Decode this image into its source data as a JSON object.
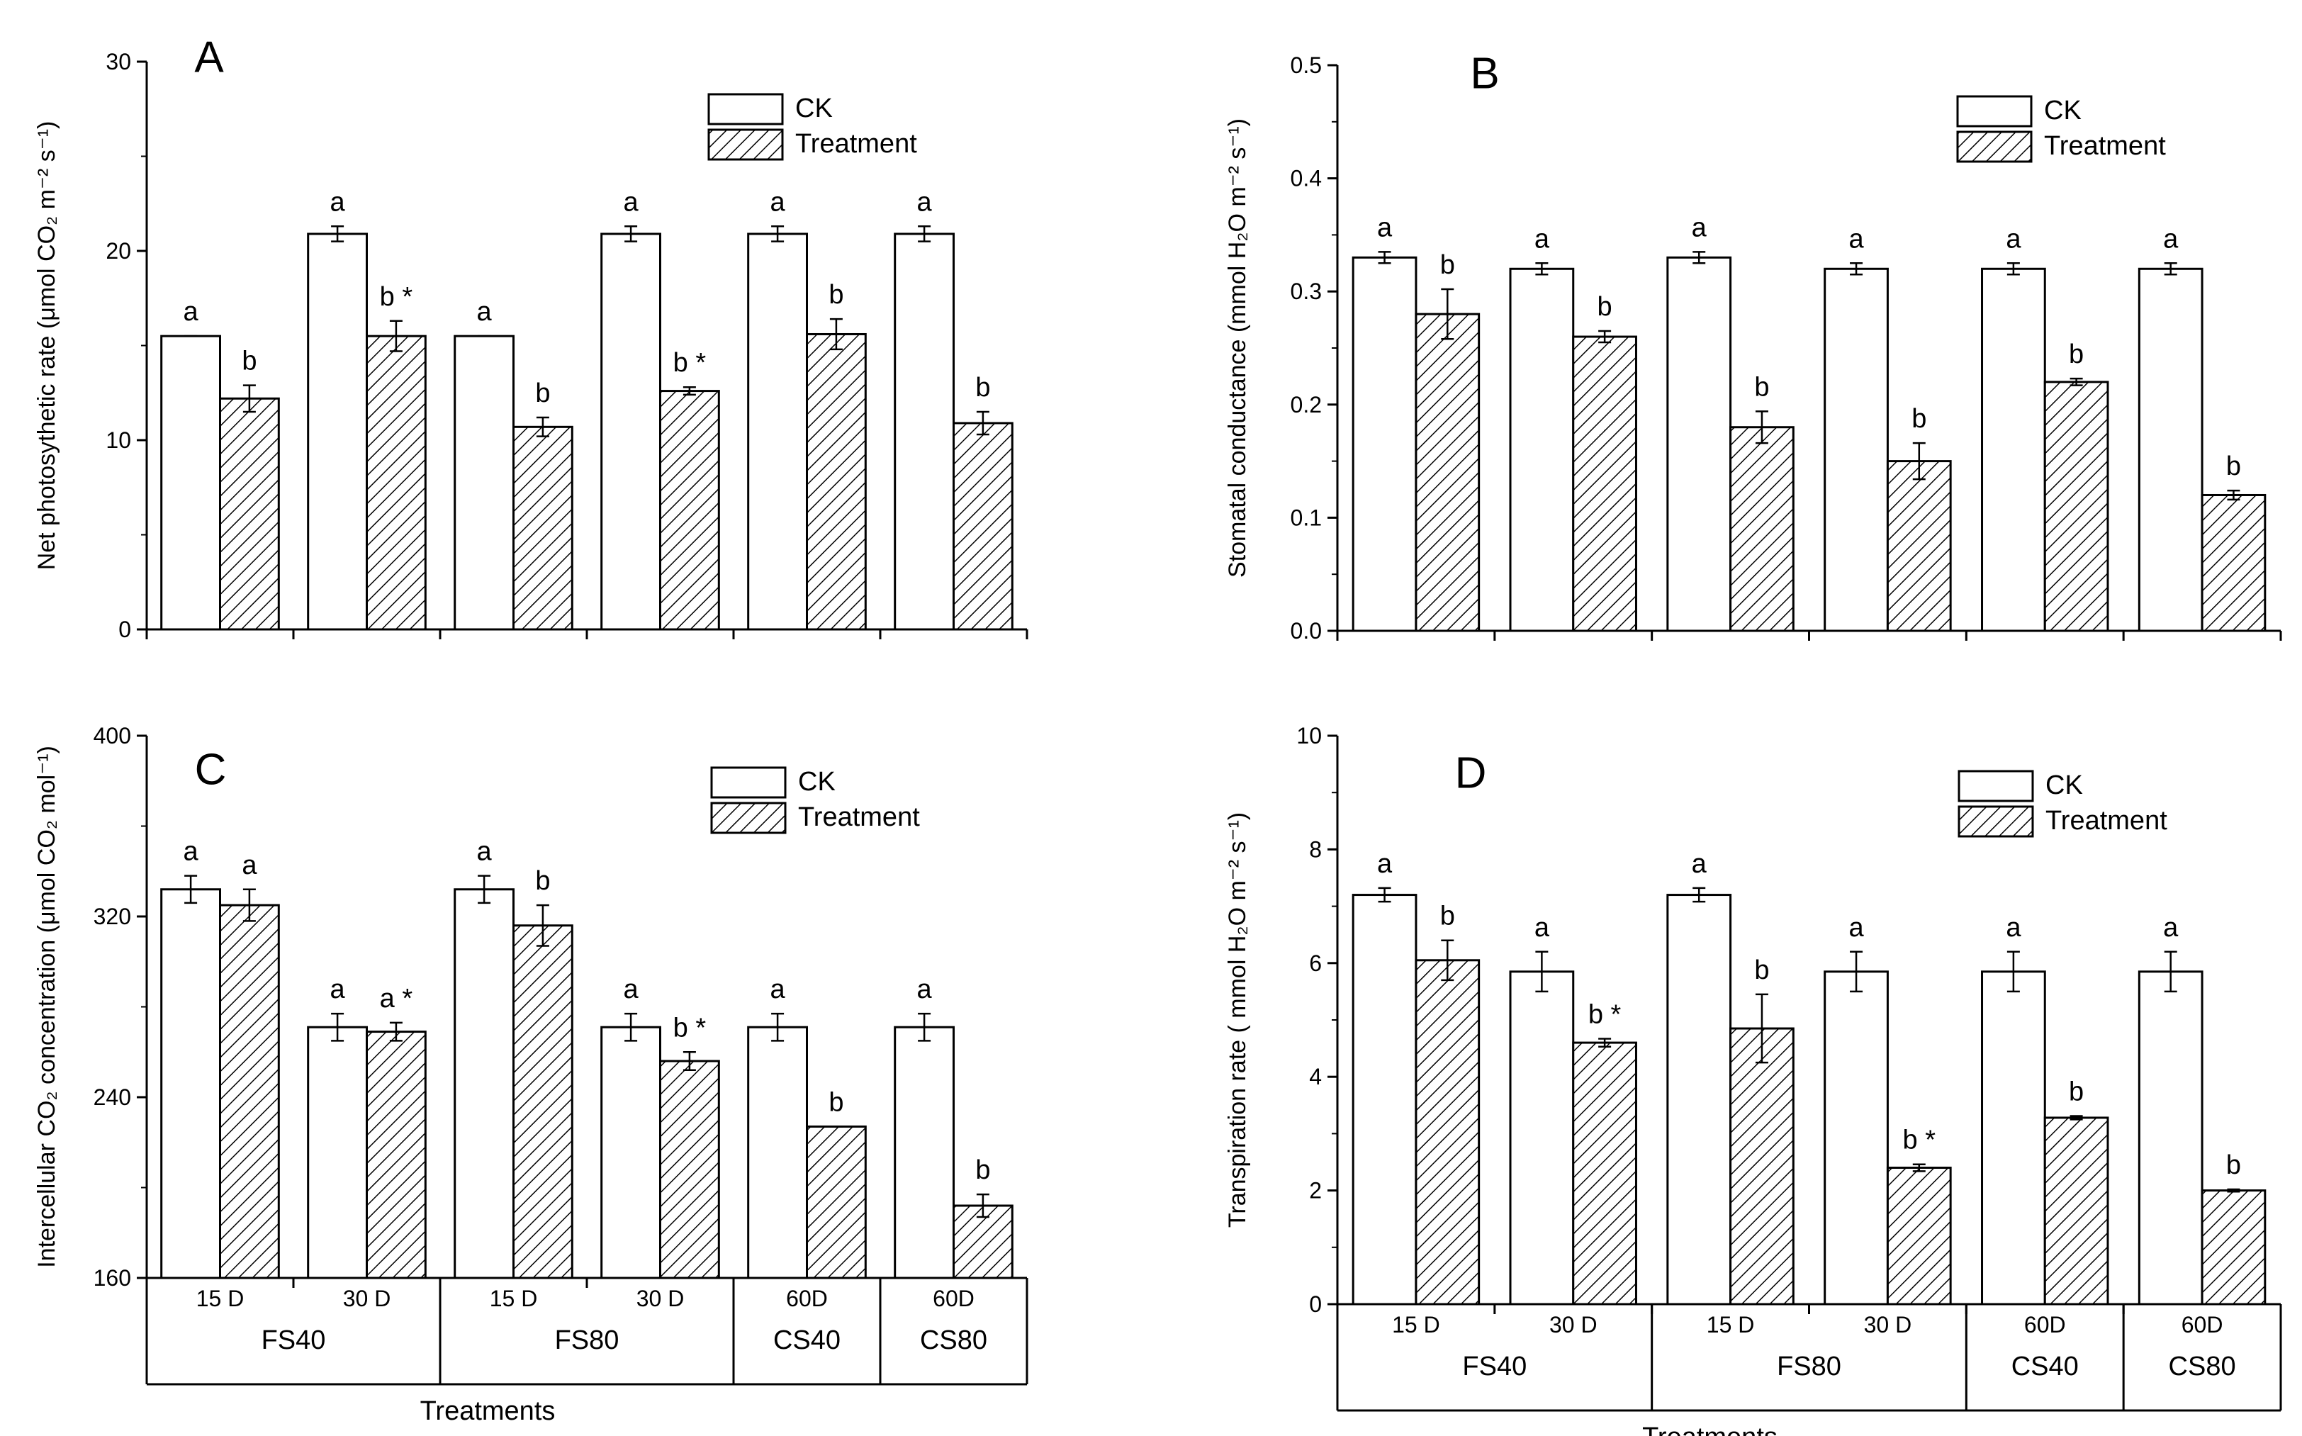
{
  "figure": {
    "x_title": "Treatments",
    "x_sub_labels": [
      "15 D",
      "30 D",
      "15 D",
      "30 D",
      "60D",
      "60D"
    ],
    "x_group_labels": [
      "FS40",
      "FS80",
      "CS40",
      "CS80"
    ],
    "legend": [
      "CK",
      "Treatment"
    ],
    "colors": {
      "ck_fill": "#ffffff",
      "treatment_hatch": "#000000",
      "axis": "#000000"
    }
  },
  "chart_data": [
    {
      "panel": "A",
      "type": "bar",
      "ylabel": "Net photosythetic rate (μmol CO₂ m⁻² s⁻¹)",
      "ylim": [
        0,
        30
      ],
      "yticks": [
        "0",
        "10",
        "20",
        "30"
      ],
      "categories": [
        "15 D",
        "30 D",
        "15 D",
        "30 D",
        "60D",
        "60D"
      ],
      "groups": [
        "FS40",
        "FS80",
        "CS40",
        "CS80"
      ],
      "series": [
        {
          "name": "CK",
          "values": [
            15.5,
            20.9,
            15.5,
            20.9,
            20.9,
            20.9
          ],
          "errors": [
            0,
            0.4,
            0,
            0.4,
            0.4,
            0.4
          ],
          "labels": [
            "a",
            "a",
            "a",
            "a",
            "a",
            "a"
          ]
        },
        {
          "name": "Treatment",
          "values": [
            12.2,
            15.5,
            10.7,
            12.6,
            15.6,
            10.9
          ],
          "errors": [
            0.7,
            0.8,
            0.5,
            0.2,
            0.8,
            0.6
          ],
          "labels": [
            "b",
            "b *",
            "b",
            "b *",
            "b",
            "b"
          ]
        }
      ]
    },
    {
      "panel": "B",
      "type": "bar",
      "ylabel": "Stomatal conductance (mmol H₂O m⁻² s⁻¹)",
      "ylim": [
        0,
        0.5
      ],
      "yticks": [
        "0.0",
        "0.1",
        "0.2",
        "0.3",
        "0.4",
        "0.5"
      ],
      "categories": [
        "15 D",
        "30 D",
        "15 D",
        "30 D",
        "60D",
        "60D"
      ],
      "groups": [
        "FS40",
        "FS80",
        "CS40",
        "CS80"
      ],
      "series": [
        {
          "name": "CK",
          "values": [
            0.33,
            0.32,
            0.33,
            0.32,
            0.32,
            0.32
          ],
          "errors": [
            0.005,
            0.005,
            0.005,
            0.005,
            0.005,
            0.005
          ],
          "labels": [
            "a",
            "a",
            "a",
            "a",
            "a",
            "a"
          ]
        },
        {
          "name": "Treatment",
          "values": [
            0.28,
            0.26,
            0.18,
            0.15,
            0.22,
            0.12
          ],
          "errors": [
            0.022,
            0.005,
            0.014,
            0.016,
            0.003,
            0.004
          ],
          "labels": [
            "b",
            "b",
            "b",
            "b",
            "b",
            "b"
          ]
        }
      ]
    },
    {
      "panel": "C",
      "type": "bar",
      "ylabel": "Intercellular CO₂ concentration (μmol CO₂ mol⁻¹)",
      "ylim": [
        160,
        400
      ],
      "yticks": [
        "160",
        "240",
        "320",
        "400"
      ],
      "categories": [
        "15 D",
        "30 D",
        "15 D",
        "30 D",
        "60D",
        "60D"
      ],
      "groups": [
        "FS40",
        "FS80",
        "CS40",
        "CS80"
      ],
      "series": [
        {
          "name": "CK",
          "values": [
            332,
            271,
            332,
            271,
            271,
            271
          ],
          "errors": [
            6,
            6,
            6,
            6,
            6,
            6
          ],
          "labels": [
            "a",
            "a",
            "a",
            "a",
            "a",
            "a"
          ]
        },
        {
          "name": "Treatment",
          "values": [
            325,
            269,
            316,
            256,
            227,
            192
          ],
          "errors": [
            7,
            4,
            9,
            4,
            0,
            5
          ],
          "labels": [
            "a",
            "a *",
            "b",
            "b *",
            "b",
            "b"
          ]
        }
      ]
    },
    {
      "panel": "D",
      "type": "bar",
      "ylabel": "Transpiration rate ( mmol H₂O m⁻² s⁻¹)",
      "ylim": [
        0,
        10
      ],
      "yticks": [
        "0",
        "2",
        "4",
        "6",
        "8",
        "10"
      ],
      "categories": [
        "15 D",
        "30 D",
        "15 D",
        "30 D",
        "60D",
        "60D"
      ],
      "groups": [
        "FS40",
        "FS80",
        "CS40",
        "CS80"
      ],
      "series": [
        {
          "name": "CK",
          "values": [
            7.2,
            5.85,
            7.2,
            5.85,
            5.85,
            5.85
          ],
          "errors": [
            0.12,
            0.35,
            0.12,
            0.35,
            0.35,
            0.35
          ],
          "labels": [
            "a",
            "a",
            "a",
            "a",
            "a",
            "a"
          ]
        },
        {
          "name": "Treatment",
          "values": [
            6.05,
            4.6,
            4.85,
            2.4,
            3.28,
            2.0
          ],
          "errors": [
            0.35,
            0.07,
            0.6,
            0.06,
            0.03,
            0.02
          ],
          "labels": [
            "b",
            "b *",
            "b",
            "b *",
            "b",
            "b"
          ]
        }
      ]
    }
  ]
}
